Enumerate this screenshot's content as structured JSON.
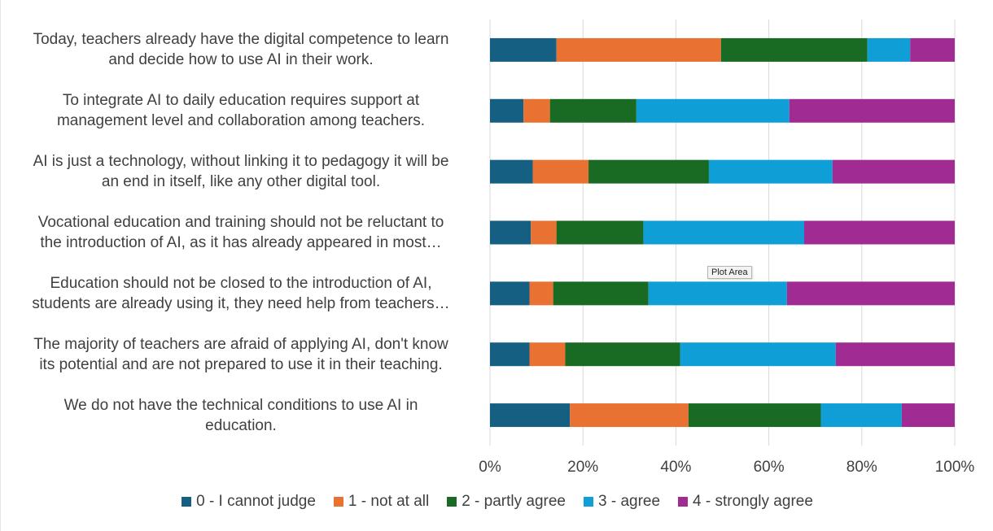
{
  "chart_data": {
    "type": "bar",
    "orientation": "horizontal",
    "stacked": "percent",
    "categories": [
      "Today, teachers already have the digital competence to learn\nand decide how to use AI in their work.",
      "To integrate AI to daily education requires support at\nmanagement level and collaboration among teachers.",
      "AI is just a technology, without linking it to pedagogy it will be\nan end in itself, like any other digital tool.",
      "Vocational education and training should not be reluctant to\nthe introduction of AI, as it has already appeared in most…",
      "Education should not be closed to the introduction of AI,\nstudents are already using it, they need help from teachers…",
      "The majority of teachers are afraid of applying AI, don't know\nits potential and are not prepared to use it in their teaching.",
      "We do not have the technical conditions to use AI in\neducation."
    ],
    "series": [
      {
        "name": "0 - I cannot judge",
        "color": "#156082",
        "values": [
          14.3,
          7.2,
          9.2,
          8.8,
          8.5,
          8.5,
          17.2
        ]
      },
      {
        "name": "1 - not at all",
        "color": "#e97132",
        "values": [
          35.4,
          5.7,
          12.0,
          5.5,
          5.1,
          7.7,
          25.5
        ]
      },
      {
        "name": "2 - partly agree",
        "color": "#196b24",
        "values": [
          31.5,
          18.6,
          25.9,
          18.7,
          20.5,
          24.7,
          28.5
        ]
      },
      {
        "name": "3 - agree",
        "color": "#0f9ed5",
        "values": [
          9.2,
          32.9,
          26.6,
          34.6,
          29.8,
          33.5,
          17.4
        ]
      },
      {
        "name": "4 - strongly agree",
        "color": "#a02b93",
        "values": [
          9.6,
          35.6,
          26.3,
          32.4,
          36.1,
          25.6,
          11.4
        ]
      }
    ],
    "xlim": [
      0,
      100
    ],
    "xticks": [
      "0%",
      "20%",
      "40%",
      "60%",
      "80%",
      "100%"
    ],
    "grid": true,
    "legend_position": "bottom"
  },
  "tooltip": "Plot Area"
}
